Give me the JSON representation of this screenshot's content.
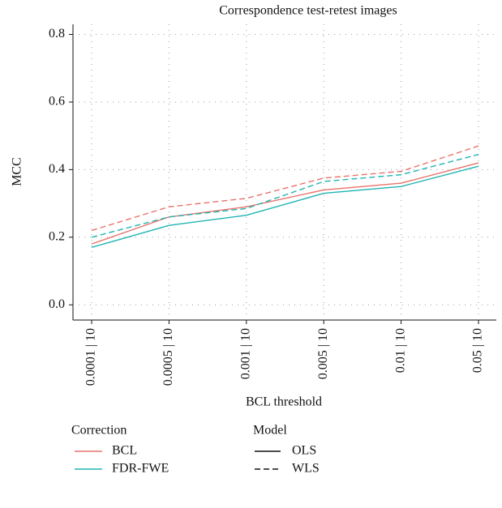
{
  "chart_data": {
    "type": "line",
    "title": "Correspondence test-retest images",
    "x_label": "BCL threshold",
    "y_label": "MCC",
    "categories": [
      "0.0001 | 10",
      "0.0005 | 10",
      "0.001 | 10",
      "0.005 | 10",
      "0.01 | 10",
      "0.05 | 10"
    ],
    "ylim": [
      -0.045,
      0.83
    ],
    "yticks": [
      {
        "value": 0,
        "label": "0.0"
      },
      {
        "value": 0.2,
        "label": "0.2"
      },
      {
        "value": 0.4,
        "label": "0.4"
      },
      {
        "value": 0.6,
        "label": "0.6"
      },
      {
        "value": 0.8,
        "label": "0.8"
      }
    ],
    "grid": true,
    "correction_title": "Correction",
    "model_title": "Model",
    "models": [
      {
        "name": "OLS",
        "dash": "solid"
      },
      {
        "name": "WLS",
        "dash": "dashed"
      }
    ],
    "corrections": [
      {
        "name": "BCL",
        "color": "#e8736c",
        "values": [
          [
            0.18,
            0.26,
            0.29,
            0.34,
            0.36,
            0.42
          ],
          [
            0.22,
            0.29,
            0.315,
            0.375,
            0.395,
            0.47
          ]
        ]
      },
      {
        "name": "FDR-FWE",
        "color": "#1fb5b3",
        "values": [
          [
            0.17,
            0.235,
            0.265,
            0.33,
            0.35,
            0.41
          ],
          [
            0.2,
            0.26,
            0.285,
            0.365,
            0.385,
            0.445
          ]
        ]
      }
    ]
  }
}
